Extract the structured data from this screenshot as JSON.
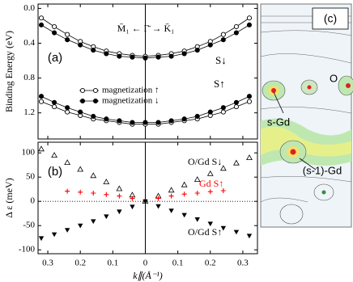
{
  "chart_data": [
    {
      "type": "line",
      "y_label": "Binding Energy (eV)",
      "x": [
        -0.32,
        -0.28,
        -0.24,
        -0.2,
        -0.16,
        -0.12,
        -0.08,
        -0.04,
        0,
        0.04,
        0.08,
        0.12,
        0.16,
        0.2,
        0.24,
        0.28,
        0.32
      ],
      "xlim": [
        -0.33,
        0.345
      ],
      "ylim": [
        -0.05,
        1.5
      ],
      "y_inverted": true,
      "yticks": [
        {
          "value": 0,
          "label": "0.0"
        },
        0.4,
        0.8,
        1.2
      ],
      "bands": [
        "S↓",
        "S↑"
      ],
      "series": [
        {
          "name": "magnetization ↑",
          "marker": "circle-open",
          "color": "#000000",
          "values": [
            [
              0.11,
              0.21,
              0.3,
              0.38,
              0.44,
              0.49,
              0.52,
              0.54,
              0.55,
              0.54,
              0.52,
              0.49,
              0.44,
              0.38,
              0.3,
              0.21,
              0.11
            ],
            [
              1.07,
              1.13,
              1.19,
              1.23,
              1.27,
              1.29,
              1.31,
              1.33,
              1.33,
              1.33,
              1.31,
              1.29,
              1.27,
              1.23,
              1.19,
              1.13,
              1.07
            ]
          ]
        },
        {
          "name": "magnetization ↓",
          "marker": "circle-filled",
          "color": "#000000",
          "values": [
            [
              0.19,
              0.28,
              0.36,
              0.42,
              0.48,
              0.52,
              0.55,
              0.56,
              0.57,
              0.56,
              0.55,
              0.52,
              0.48,
              0.42,
              0.36,
              0.28,
              0.19
            ],
            [
              1.01,
              1.08,
              1.14,
              1.19,
              1.24,
              1.27,
              1.29,
              1.31,
              1.31,
              1.31,
              1.29,
              1.27,
              1.24,
              1.19,
              1.14,
              1.08,
              1.01
            ]
          ]
        }
      ],
      "annotations": [
        "(a)",
        "M̄₁ ← Γ̄ → K̄₁"
      ]
    },
    {
      "type": "scatter",
      "y_label": "Δ ε (meV)",
      "x_label": "k∥(Å⁻¹)",
      "x": [
        -0.32,
        -0.28,
        -0.24,
        -0.2,
        -0.16,
        -0.12,
        -0.08,
        -0.04,
        0,
        0.04,
        0.08,
        0.12,
        0.16,
        0.2,
        0.24,
        0.28,
        0.32
      ],
      "xlim": [
        -0.33,
        0.345
      ],
      "ylim": [
        -108,
        122
      ],
      "xticks": [
        {
          "value": -0.3,
          "label": "0.3"
        },
        {
          "value": -0.2,
          "label": "0.2"
        },
        {
          "value": -0.1,
          "label": "0.1"
        },
        0,
        0.1,
        0.2,
        0.3
      ],
      "yticks": [
        -100,
        -50,
        0,
        50,
        100
      ],
      "series": [
        {
          "name": "O/Gd S↓",
          "marker": "triangle-up-open",
          "color": "#000000",
          "values": [
            108,
            95,
            80,
            66,
            53,
            40,
            26,
            13,
            0,
            11,
            23,
            34,
            45,
            57,
            68,
            79,
            90
          ]
        },
        {
          "name": "Gd S↑",
          "marker": "plus",
          "color": "#ff0000",
          "values": [
            null,
            null,
            21,
            19,
            17,
            14,
            11,
            6,
            0,
            6,
            11,
            15,
            17,
            20,
            22,
            null,
            null
          ]
        },
        {
          "name": "O/Gd S↑",
          "marker": "triangle-down-filled",
          "color": "#000000",
          "values": [
            -76,
            -68,
            -59,
            -50,
            -41,
            -31,
            -21,
            -11,
            0,
            -10,
            -19,
            -28,
            -37,
            -46,
            -55,
            -63,
            -71
          ]
        }
      ],
      "annotations": [
        "(b)"
      ]
    }
  ],
  "image_panel": {
    "label": "(c)",
    "annotations": [
      "s-Gd",
      "O",
      "(s-1)-Gd"
    ]
  }
}
